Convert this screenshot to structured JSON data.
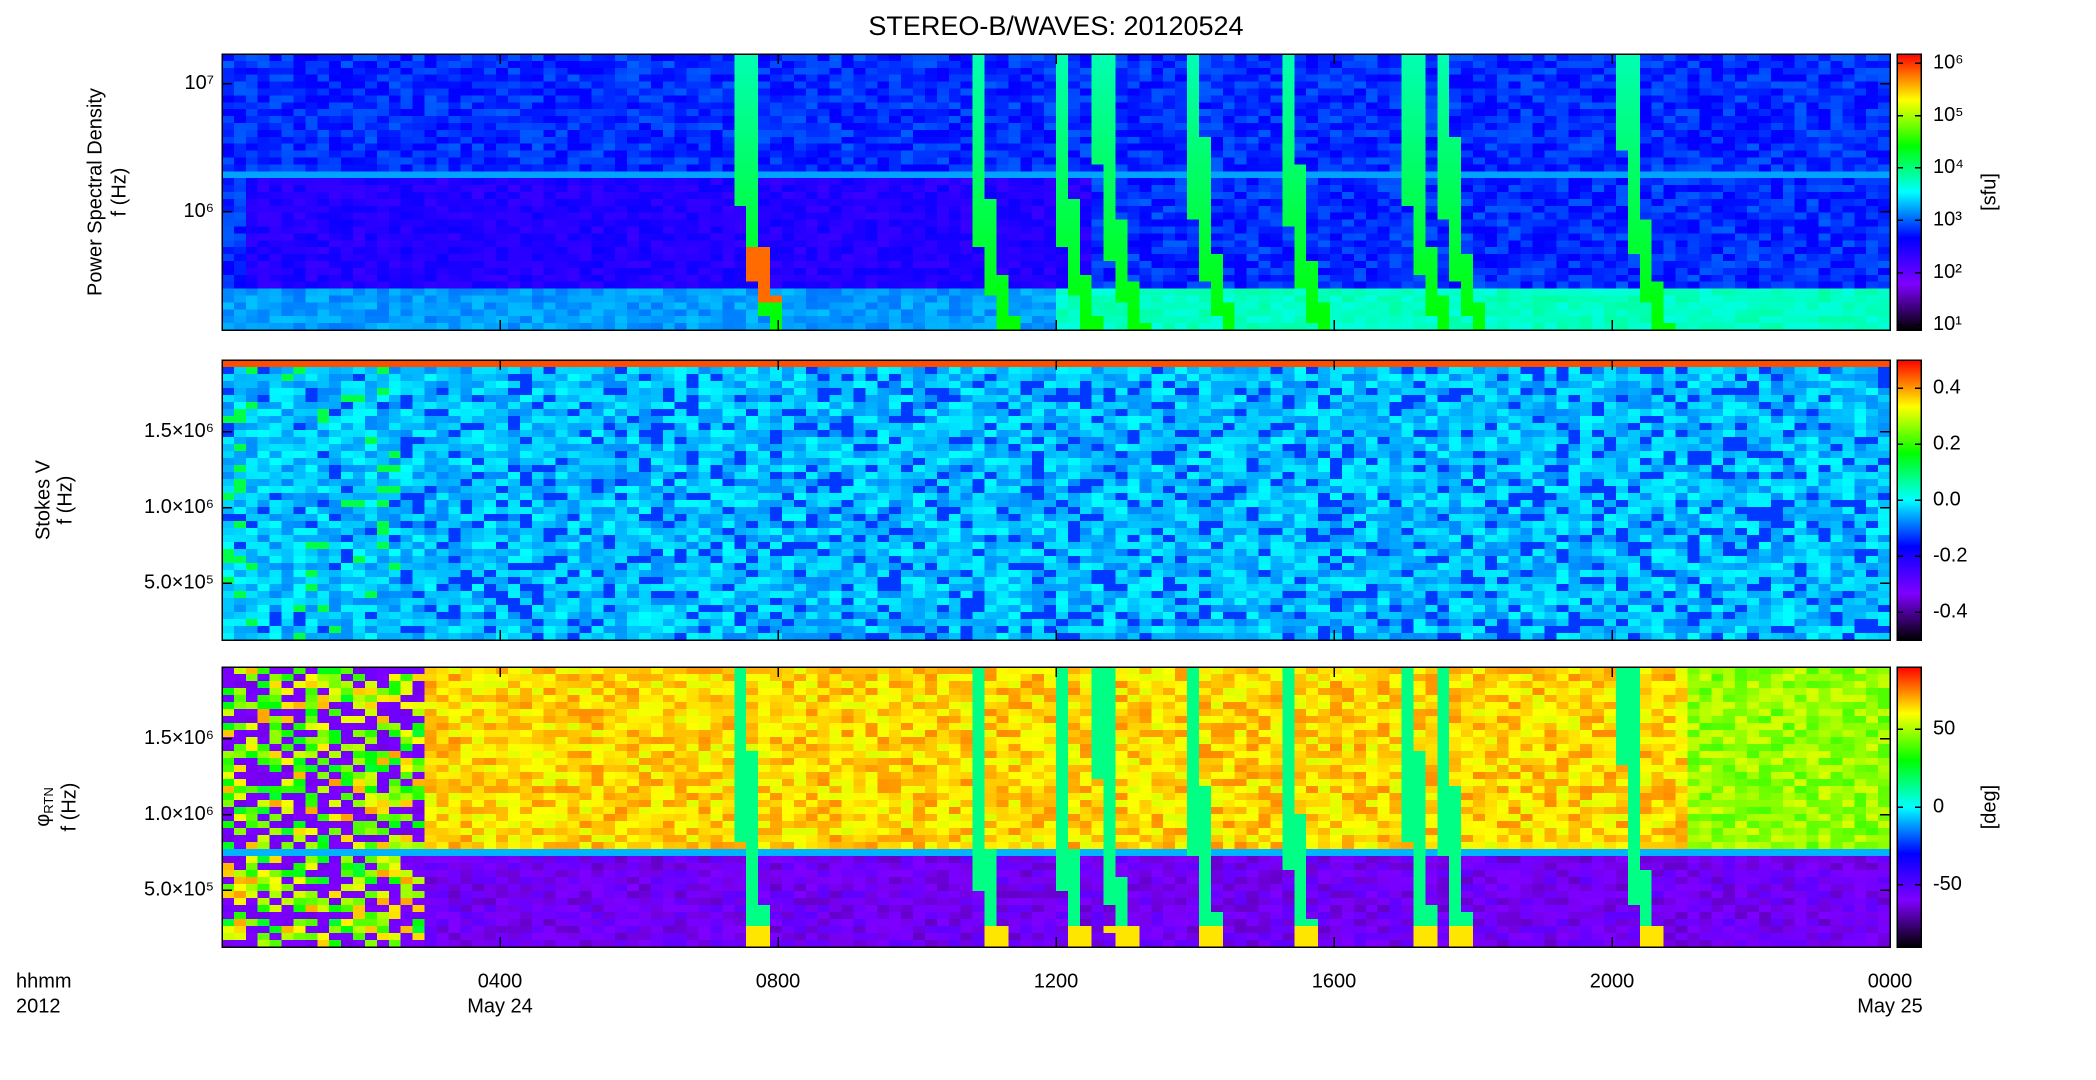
{
  "chart_data": [
    {
      "type": "spectrogram",
      "title": "STEREO-B/WAVES: 20120524",
      "ylabel": [
        "Power Spectral Density",
        "f (Hz)"
      ],
      "ylog": true,
      "ylim": [
        120000,
        17000000
      ],
      "yticks": [
        {
          "value": 1000000,
          "label": "10⁶"
        },
        {
          "value": 10000000,
          "label": "10⁷"
        }
      ],
      "xlim": [
        0,
        24
      ],
      "clog": true,
      "clim": [
        8,
        1500000
      ],
      "cticks": [
        {
          "value": 10,
          "label": "10¹"
        },
        {
          "value": 100,
          "label": "10²"
        },
        {
          "value": 1000,
          "label": "10³"
        },
        {
          "value": 10000,
          "label": "10⁴"
        },
        {
          "value": 100000,
          "label": "10⁵"
        },
        {
          "value": 1000000,
          "label": "10⁶"
        }
      ],
      "clabel": "[sfu]",
      "colors": [
        "#000000",
        "#7f00ff",
        "#0000ff",
        "#00ffff",
        "#00ff00",
        "#ffff00",
        "#ff0000"
      ]
    },
    {
      "type": "spectrogram",
      "ylabel": [
        "Stokes V",
        "f (Hz)"
      ],
      "ylog": false,
      "ylim": [
        125000,
        1975000
      ],
      "yticks": [
        {
          "value": 500000,
          "label": "5.0×10⁵"
        },
        {
          "value": 1000000,
          "label": "1.0×10⁶"
        },
        {
          "value": 1500000,
          "label": "1.5×10⁶"
        }
      ],
      "xlim": [
        0,
        24
      ],
      "clog": false,
      "clim": [
        -0.5,
        0.5
      ],
      "cticks": [
        -0.4,
        -0.2,
        {
          "value": 0,
          "label": "0.0"
        },
        0.2,
        0.4
      ],
      "colors": [
        "#000000",
        "#7f00ff",
        "#0000ff",
        "#00ffff",
        "#00ff00",
        "#ffff00",
        "#ff0000"
      ]
    },
    {
      "type": "spectrogram",
      "ylabel": [
        "φ",
        "RTN",
        "f (Hz)"
      ],
      "ylog": false,
      "ylim": [
        125000,
        1975000
      ],
      "yticks": [
        {
          "value": 500000,
          "label": "5.0×10⁵"
        },
        {
          "value": 1000000,
          "label": "1.0×10⁶"
        },
        {
          "value": 1500000,
          "label": "1.5×10⁶"
        }
      ],
      "xlim": [
        0,
        24
      ],
      "xticks": [
        {
          "value": 4,
          "label": "0400"
        },
        {
          "value": 8,
          "label": "0800"
        },
        {
          "value": 12,
          "label": "1200"
        },
        {
          "value": 16,
          "label": "1600"
        },
        {
          "value": 20,
          "label": "2000"
        },
        {
          "value": 24,
          "label": "0000"
        }
      ],
      "xtick_dates": [
        {
          "value": 4,
          "label": "May 24"
        },
        {
          "value": 24,
          "label": "May 25"
        }
      ],
      "xlabel": [
        "hhmm",
        "2012"
      ],
      "clog": false,
      "clim": [
        -90,
        90
      ],
      "cticks": [
        -50,
        0,
        50
      ],
      "clabel": "[deg]",
      "colors": [
        "#000000",
        "#7f00ff",
        "#0000ff",
        "#00ffff",
        "#00ff00",
        "#ffff00",
        "#ff0000"
      ]
    }
  ]
}
